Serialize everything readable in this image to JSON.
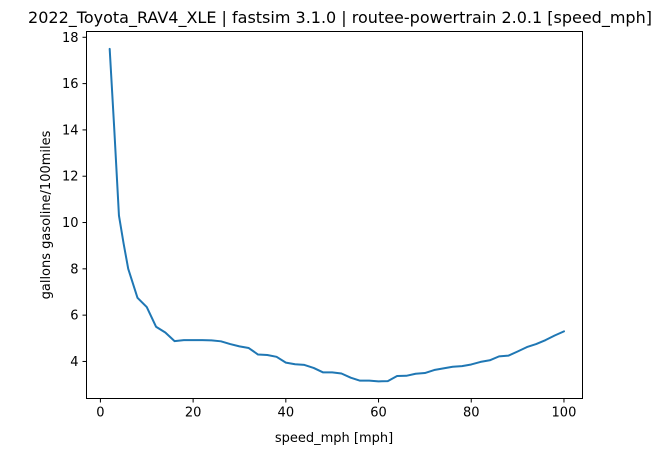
{
  "chart_data": {
    "type": "line",
    "title": "2022_Toyota_RAV4_XLE | fastsim 3.1.0 | routee-powertrain 2.0.1 [speed_mph]",
    "xlabel": "speed_mph [mph]",
    "ylabel": "gallons gasoline/100miles",
    "xlim": [
      -3,
      104
    ],
    "ylim": [
      2.4,
      18.25
    ],
    "xticks": [
      0,
      20,
      40,
      60,
      80,
      100
    ],
    "yticks": [
      4,
      6,
      8,
      10,
      12,
      14,
      16,
      18
    ],
    "grid": false,
    "series": [
      {
        "color": "#1f77b4",
        "x": [
          2,
          3,
          4,
          5,
          6,
          8,
          10,
          12,
          14,
          16,
          18,
          20,
          22,
          24,
          26,
          28,
          30,
          32,
          34,
          36,
          38,
          40,
          42,
          44,
          46,
          48,
          50,
          52,
          54,
          56,
          58,
          60,
          62,
          64,
          66,
          68,
          70,
          72,
          74,
          76,
          78,
          80,
          82,
          84,
          86,
          88,
          90,
          92,
          94,
          96,
          98,
          100
        ],
        "y": [
          17.5,
          14.0,
          10.3,
          9.1,
          8.0,
          6.75,
          6.35,
          5.5,
          5.25,
          4.88,
          4.92,
          4.92,
          4.92,
          4.91,
          4.87,
          4.75,
          4.65,
          4.58,
          4.3,
          4.28,
          4.2,
          3.95,
          3.88,
          3.85,
          3.72,
          3.53,
          3.53,
          3.48,
          3.3,
          3.17,
          3.17,
          3.14,
          3.15,
          3.37,
          3.38,
          3.47,
          3.5,
          3.63,
          3.7,
          3.77,
          3.8,
          3.87,
          3.98,
          4.05,
          4.22,
          4.25,
          4.43,
          4.62,
          4.75,
          4.92,
          5.12,
          5.3
        ]
      }
    ]
  }
}
